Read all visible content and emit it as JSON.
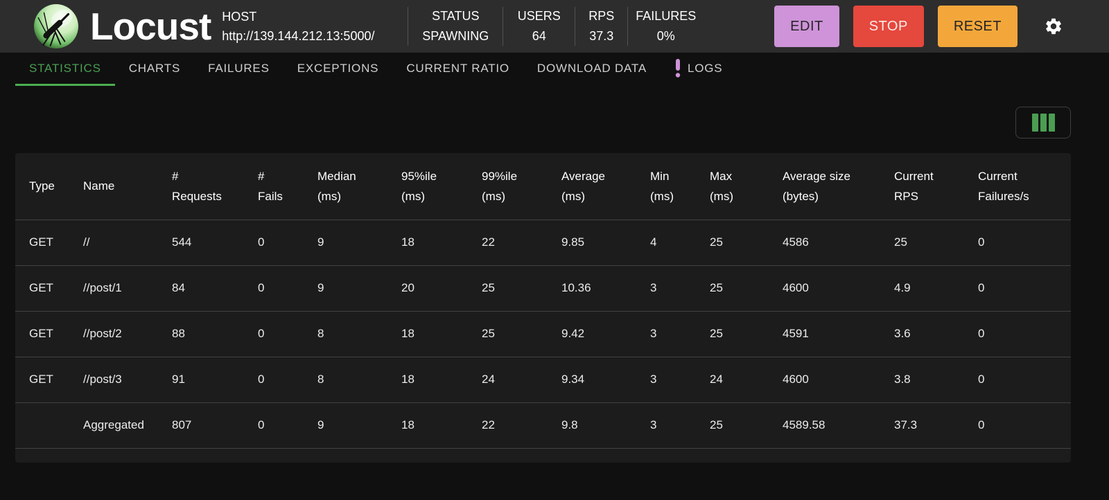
{
  "header": {
    "brand": "Locust",
    "host": {
      "label": "HOST",
      "url": "http://139.144.212.13:5000/"
    },
    "stats": [
      {
        "label": "STATUS",
        "value": "SPAWNING"
      },
      {
        "label": "USERS",
        "value": "64"
      },
      {
        "label": "RPS",
        "value": "37.3"
      },
      {
        "label": "FAILURES",
        "value": "0%"
      }
    ],
    "buttons": [
      {
        "id": "edit",
        "label": "EDIT",
        "color": "#ce93d8",
        "text_color": "#262626"
      },
      {
        "id": "stop",
        "label": "STOP",
        "color": "#e5483d",
        "text_color": "#fdecea"
      },
      {
        "id": "reset",
        "label": "RESET",
        "color": "#f3a73b",
        "text_color": "#232323"
      }
    ]
  },
  "tabs": [
    {
      "label": "STATISTICS",
      "active": true
    },
    {
      "label": "CHARTS"
    },
    {
      "label": "FAILURES"
    },
    {
      "label": "EXCEPTIONS"
    },
    {
      "label": "CURRENT RATIO"
    },
    {
      "label": "DOWNLOAD DATA"
    },
    {
      "label": "LOGS",
      "badge": "exclamation"
    }
  ],
  "table": {
    "columns": [
      {
        "line1": "Type",
        "line2": ""
      },
      {
        "line1": "Name",
        "line2": ""
      },
      {
        "line1": "#",
        "line2": "Requests"
      },
      {
        "line1": "#",
        "line2": "Fails"
      },
      {
        "line1": "Median",
        "line2": "(ms)"
      },
      {
        "line1": "95%ile",
        "line2": "(ms)"
      },
      {
        "line1": "99%ile",
        "line2": "(ms)"
      },
      {
        "line1": "Average",
        "line2": "(ms)"
      },
      {
        "line1": "Min",
        "line2": "(ms)"
      },
      {
        "line1": "Max",
        "line2": "(ms)"
      },
      {
        "line1": "Average size",
        "line2": "(bytes)"
      },
      {
        "line1": "Current",
        "line2": "RPS"
      },
      {
        "line1": "Current",
        "line2": "Failures/s"
      }
    ],
    "rows": [
      [
        "GET",
        "//",
        "544",
        "0",
        "9",
        "18",
        "22",
        "9.85",
        "4",
        "25",
        "4586",
        "25",
        "0"
      ],
      [
        "GET",
        "//post/1",
        "84",
        "0",
        "9",
        "20",
        "25",
        "10.36",
        "3",
        "25",
        "4600",
        "4.9",
        "0"
      ],
      [
        "GET",
        "//post/2",
        "88",
        "0",
        "8",
        "18",
        "25",
        "9.42",
        "3",
        "25",
        "4591",
        "3.6",
        "0"
      ],
      [
        "GET",
        "//post/3",
        "91",
        "0",
        "8",
        "18",
        "24",
        "9.34",
        "3",
        "24",
        "4600",
        "3.8",
        "0"
      ],
      [
        "",
        "Aggregated",
        "807",
        "0",
        "9",
        "18",
        "22",
        "9.8",
        "3",
        "25",
        "4589.58",
        "37.3",
        "0"
      ]
    ]
  },
  "colors": {
    "header_bg": "#2d2d2d",
    "page_bg": "#101010",
    "table_bg": "#1c1c1c",
    "row_border": "#424242",
    "accent_green": "#4b9e52",
    "underline_green": "#4caf50",
    "logs_badge_purple": "#ce93d8"
  }
}
